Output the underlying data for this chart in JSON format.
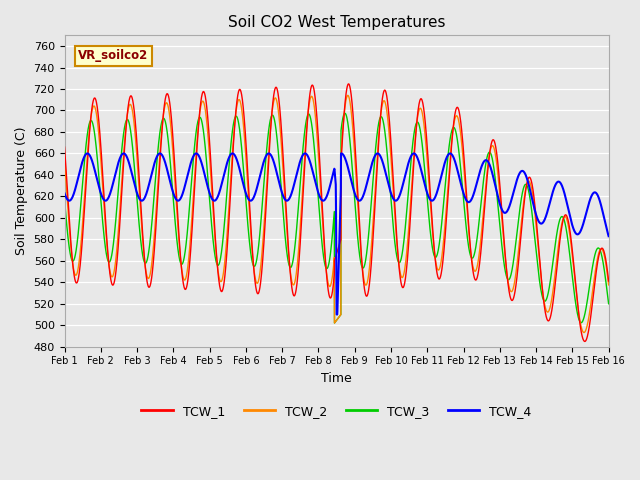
{
  "title": "Soil CO2 West Temperatures",
  "xlabel": "Time",
  "ylabel": "Soil Temperature (C)",
  "label_box_text": "VR_soilco2",
  "ylim": [
    480,
    770
  ],
  "xlim": [
    0,
    15
  ],
  "xtick_labels": [
    "Feb 1",
    "Feb 2",
    "Feb 3",
    "Feb 4",
    "Feb 5",
    "Feb 6",
    "Feb 7",
    "Feb 8",
    "Feb 9",
    "Feb 10",
    "Feb 11",
    "Feb 12",
    "Feb 13",
    "Feb 14",
    "Feb 15",
    "Feb 16"
  ],
  "ytick_values": [
    480,
    500,
    520,
    540,
    560,
    580,
    600,
    620,
    640,
    660,
    680,
    700,
    720,
    740,
    760
  ],
  "line_colors": {
    "TCW_1": "#ff0000",
    "TCW_2": "#ff8800",
    "TCW_3": "#00cc00",
    "TCW_4": "#0000ff"
  },
  "background_color": "#e8e8e8",
  "fig_background": "#e8e8e8",
  "figsize": [
    6.4,
    4.8
  ],
  "dpi": 100
}
